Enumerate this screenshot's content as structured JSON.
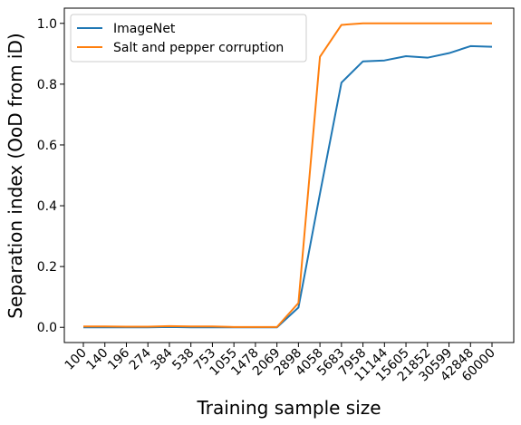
{
  "chart_data": {
    "type": "line",
    "categories": [
      "100",
      "140",
      "196",
      "274",
      "384",
      "538",
      "753",
      "1055",
      "1478",
      "2069",
      "2898",
      "4058",
      "5683",
      "7958",
      "11144",
      "15605",
      "21852",
      "30599",
      "42848",
      "60000"
    ],
    "series": [
      {
        "name": "ImageNet",
        "color": "#1f77b4",
        "values": [
          0.0,
          0.0,
          0.0,
          0.0,
          0.001,
          0.0,
          0.0,
          0.0,
          0.0,
          0.0,
          0.065,
          0.44,
          0.805,
          0.875,
          0.878,
          0.892,
          0.887,
          0.902,
          0.925,
          0.923
        ]
      },
      {
        "name": "Salt and pepper corruption",
        "color": "#ff7f0e",
        "values": [
          0.003,
          0.003,
          0.002,
          0.002,
          0.004,
          0.003,
          0.003,
          0.001,
          0.001,
          0.001,
          0.08,
          0.89,
          0.995,
          1.0,
          1.0,
          1.0,
          1.0,
          1.0,
          1.0,
          1.0
        ]
      }
    ],
    "xlabel": "Training sample size",
    "ylabel": "Separation index (OoD from iD)",
    "ylim": [
      -0.05,
      1.05
    ],
    "yticks": [
      "0.0",
      "0.2",
      "0.4",
      "0.6",
      "0.8",
      "1.0"
    ],
    "grid": false,
    "legend_position": "top-left"
  }
}
